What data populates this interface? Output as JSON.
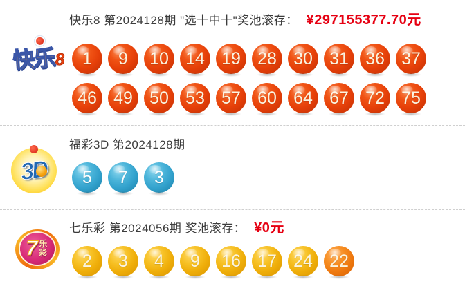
{
  "colors": {
    "title_text": "#3c3c3c",
    "jackpot_red": "#e60012",
    "divider": "#cfcfcf",
    "ball_red": "#e64009",
    "ball_blue": "#33a2cd",
    "ball_gold": "#efae0a",
    "ball_orange_special": "#ef7a10"
  },
  "icons": {
    "kuaile8_logo": "kuaile8-logo",
    "fucai3d_logo": "fucai3d-logo",
    "qilecai_logo": "qilecai-logo"
  },
  "sections": {
    "kuaile8": {
      "logo_main": "快乐",
      "logo_eight": "8",
      "title": "快乐8 第2024128期 \"选十中十\"奖池滚存：",
      "jackpot": "¥297155377.70元",
      "row1": [
        1,
        9,
        10,
        14,
        19,
        28,
        30,
        31,
        36,
        37
      ],
      "row2": [
        46,
        49,
        50,
        53,
        57,
        60,
        64,
        67,
        72,
        75
      ]
    },
    "fucai3d": {
      "logo": "3D",
      "title": "福彩3D 第2024128期",
      "numbers": [
        5,
        7,
        3
      ]
    },
    "qilecai": {
      "logo_digit": "7",
      "logo_suffix": "乐彩",
      "title": "七乐彩 第2024056期 奖池滚存：",
      "jackpot": "¥0元",
      "numbers": [
        2,
        3,
        4,
        9,
        16,
        17,
        24
      ],
      "special": [
        22
      ]
    }
  }
}
